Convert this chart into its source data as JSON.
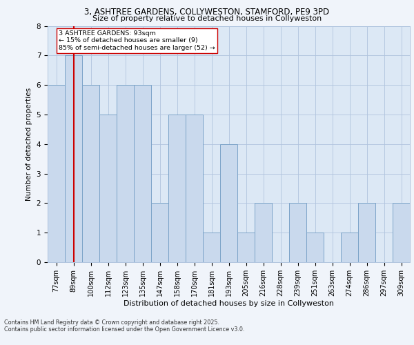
{
  "title_line1": "3, ASHTREE GARDENS, COLLYWESTON, STAMFORD, PE9 3PD",
  "title_line2": "Size of property relative to detached houses in Collyweston",
  "xlabel": "Distribution of detached houses by size in Collyweston",
  "ylabel": "Number of detached properties",
  "categories": [
    "77sqm",
    "89sqm",
    "100sqm",
    "112sqm",
    "123sqm",
    "135sqm",
    "147sqm",
    "158sqm",
    "170sqm",
    "181sqm",
    "193sqm",
    "205sqm",
    "216sqm",
    "228sqm",
    "239sqm",
    "251sqm",
    "263sqm",
    "274sqm",
    "286sqm",
    "297sqm",
    "309sqm"
  ],
  "values": [
    6,
    7,
    6,
    5,
    6,
    6,
    2,
    5,
    5,
    1,
    4,
    1,
    2,
    0,
    2,
    1,
    0,
    1,
    2,
    0,
    2
  ],
  "bar_color": "#c9d9ed",
  "bar_edge_color": "#7ba3c8",
  "marker_index": 1,
  "marker_label": "3 ASHTREE GARDENS: 93sqm",
  "annotation_line2": "← 15% of detached houses are smaller (9)",
  "annotation_line3": "85% of semi-detached houses are larger (52) →",
  "marker_color": "#cc0000",
  "ylim": [
    0,
    8
  ],
  "yticks": [
    0,
    1,
    2,
    3,
    4,
    5,
    6,
    7,
    8
  ],
  "footer_line1": "Contains HM Land Registry data © Crown copyright and database right 2025.",
  "footer_line2": "Contains public sector information licensed under the Open Government Licence v3.0.",
  "background_color": "#f0f4fa",
  "plot_bg_color": "#dce8f5",
  "grid_color": "#b0c4de"
}
